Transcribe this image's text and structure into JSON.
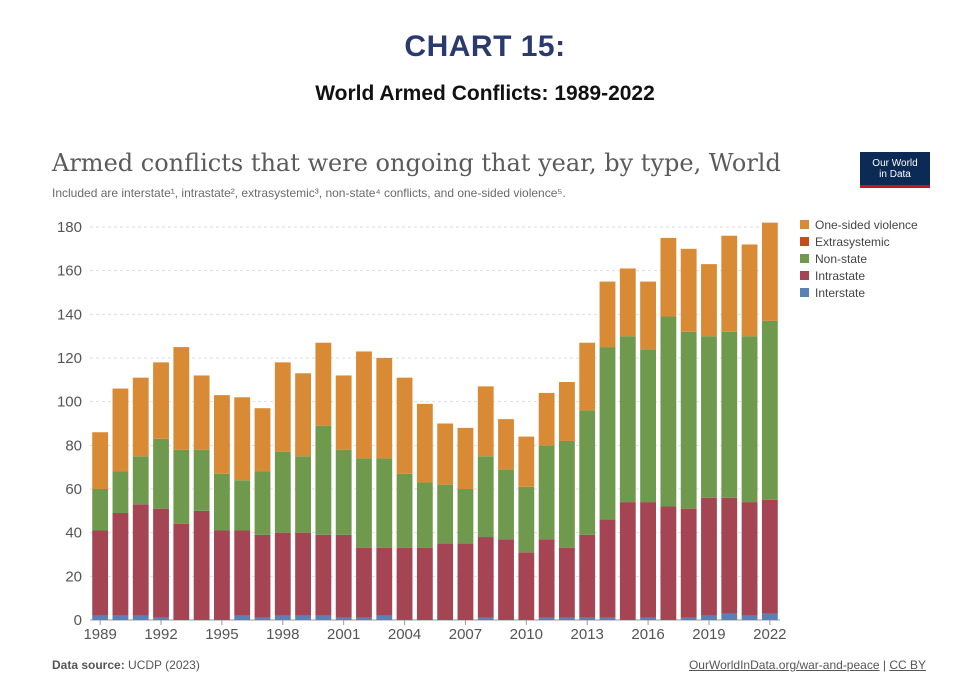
{
  "header": {
    "chart_number": "CHART 15:",
    "chart_title": "World Armed Conflicts: 1989-2022"
  },
  "owid": {
    "title": "Armed conflicts that were ongoing that year, by type, World",
    "subtitle": "Included are interstate¹, intrastate², extrasystemic³, non-state⁴ conflicts, and one-sided violence⁵.",
    "logo_line1": "Our World",
    "logo_line2": "in Data",
    "source_label": "Data source:",
    "source_value": "UCDP (2023)",
    "link_text": "OurWorldInData.org/war-and-peace",
    "license_sep": " | ",
    "license": "CC BY"
  },
  "colors": {
    "one_sided": "#d88a35",
    "extrasystemic": "#c0501a",
    "non_state": "#6f9a4e",
    "intrastate": "#a54554",
    "interstate": "#5b80b5",
    "title_blue": "#2a3a6e"
  },
  "chart_data": {
    "type": "bar",
    "stacked": true,
    "categories": [
      "1989",
      "1990",
      "1991",
      "1992",
      "1993",
      "1994",
      "1995",
      "1996",
      "1997",
      "1998",
      "1999",
      "2000",
      "2001",
      "2002",
      "2003",
      "2004",
      "2005",
      "2006",
      "2007",
      "2008",
      "2009",
      "2010",
      "2011",
      "2012",
      "2013",
      "2014",
      "2015",
      "2016",
      "2017",
      "2018",
      "2019",
      "2020",
      "2021",
      "2022"
    ],
    "x_tick_labels": [
      "1989",
      "1992",
      "1995",
      "1998",
      "2001",
      "2004",
      "2007",
      "2010",
      "2013",
      "2016",
      "2019",
      "2022"
    ],
    "y_ticks": [
      0,
      20,
      40,
      60,
      80,
      100,
      120,
      140,
      160,
      180
    ],
    "ylim": [
      0,
      180
    ],
    "grid": true,
    "legend_position": "right",
    "series": [
      {
        "name": "Interstate",
        "color_key": "interstate",
        "values": [
          2,
          2,
          2,
          1,
          0,
          0,
          0,
          2,
          1,
          2,
          2,
          2,
          1,
          1,
          2,
          0,
          0,
          0,
          0,
          1,
          0,
          0,
          1,
          1,
          1,
          1,
          0,
          1,
          0,
          1,
          2,
          3,
          2,
          3
        ]
      },
      {
        "name": "Intrastate",
        "color_key": "intrastate",
        "values": [
          39,
          47,
          51,
          50,
          44,
          50,
          41,
          39,
          38,
          38,
          38,
          37,
          38,
          32,
          31,
          33,
          33,
          35,
          35,
          37,
          37,
          31,
          36,
          32,
          38,
          45,
          54,
          53,
          52,
          50,
          54,
          53,
          52,
          52
        ]
      },
      {
        "name": "Extrasystemic",
        "color_key": "extrasystemic",
        "values": [
          0,
          0,
          0,
          0,
          0,
          0,
          0,
          0,
          0,
          0,
          0,
          0,
          0,
          0,
          0,
          0,
          0,
          0,
          0,
          0,
          0,
          0,
          0,
          0,
          0,
          0,
          0,
          0,
          0,
          0,
          0,
          0,
          0,
          0
        ]
      },
      {
        "name": "Non-state",
        "color_key": "non_state",
        "values": [
          19,
          19,
          22,
          32,
          34,
          28,
          26,
          23,
          29,
          37,
          35,
          50,
          39,
          41,
          41,
          34,
          30,
          27,
          25,
          37,
          32,
          30,
          43,
          49,
          57,
          79,
          76,
          70,
          87,
          81,
          74,
          76,
          76,
          82
        ]
      },
      {
        "name": "One-sided violence",
        "color_key": "one_sided",
        "values": [
          26,
          38,
          36,
          35,
          47,
          34,
          36,
          38,
          29,
          41,
          38,
          38,
          34,
          49,
          46,
          44,
          36,
          28,
          28,
          32,
          23,
          23,
          24,
          27,
          31,
          30,
          31,
          31,
          36,
          38,
          33,
          44,
          42,
          45
        ]
      }
    ]
  }
}
